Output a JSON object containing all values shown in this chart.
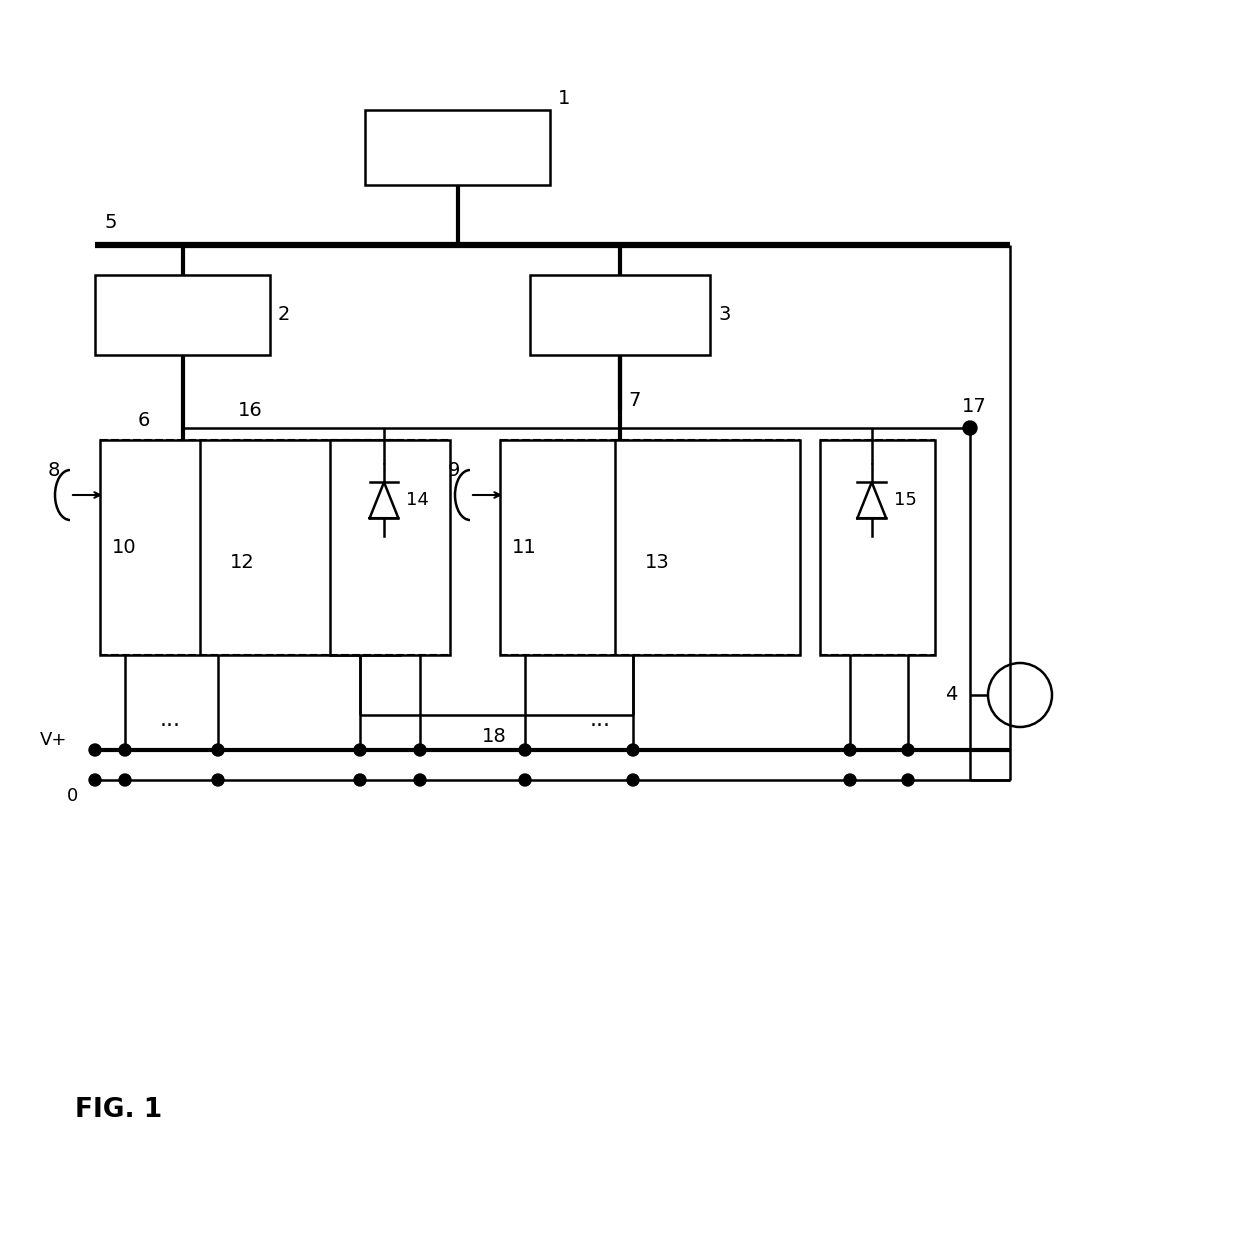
{
  "bg_color": "#ffffff",
  "fig_size": [
    12.4,
    12.4
  ],
  "dpi": 100,
  "fig_label": "FIG. 1"
}
